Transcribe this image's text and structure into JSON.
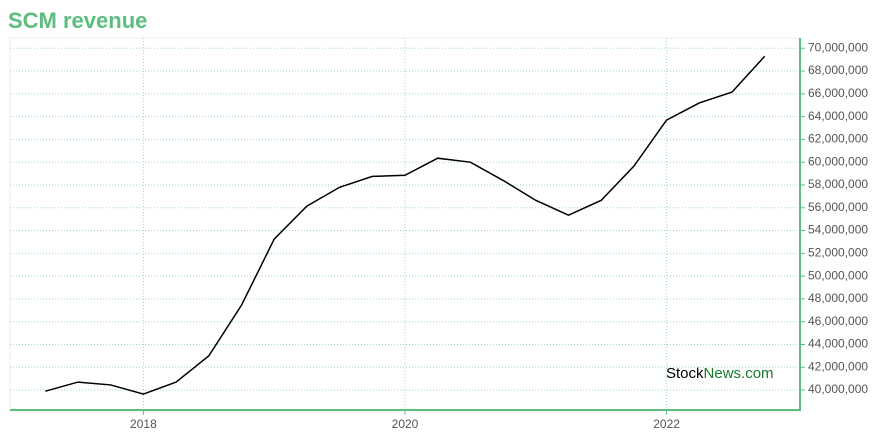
{
  "chart_data": {
    "type": "line",
    "title": "SCM revenue",
    "x": [
      2017.25,
      2017.5,
      2017.75,
      2018,
      2018.25,
      2018.5,
      2018.75,
      2019,
      2019.25,
      2019.5,
      2019.75,
      2020,
      2020.25,
      2020.5,
      2020.75,
      2021,
      2021.25,
      2021.5,
      2021.75,
      2022,
      2022.25,
      2022.5,
      2022.75
    ],
    "series": [
      {
        "name": "SCM revenue",
        "color": "#000000",
        "values": [
          39900000,
          40700000,
          40450000,
          39650000,
          40700000,
          43000000,
          47450000,
          53250000,
          56150000,
          57800000,
          58750000,
          58850000,
          60350000,
          60000000,
          58400000,
          56650000,
          55350000,
          56650000,
          59650000,
          63700000,
          65200000,
          66150000,
          69300000
        ]
      }
    ],
    "xlim": [
      2016.98,
      2023.02
    ],
    "xticks": [
      2018,
      2020,
      2022
    ],
    "ylim": [
      38250000,
      70900000
    ],
    "yticks": [
      {
        "value": 40000000,
        "label": "40,000,000"
      },
      {
        "value": 42000000,
        "label": "42,000,000"
      },
      {
        "value": 44000000,
        "label": "44,000,000"
      },
      {
        "value": 46000000,
        "label": "46,000,000"
      },
      {
        "value": 48000000,
        "label": "48,000,000"
      },
      {
        "value": 50000000,
        "label": "50,000,000"
      },
      {
        "value": 52000000,
        "label": "52,000,000"
      },
      {
        "value": 54000000,
        "label": "54,000,000"
      },
      {
        "value": 56000000,
        "label": "56,000,000"
      },
      {
        "value": 58000000,
        "label": "58,000,000"
      },
      {
        "value": 60000000,
        "label": "60,000,000"
      },
      {
        "value": 62000000,
        "label": "62,000,000"
      },
      {
        "value": 64000000,
        "label": "64,000,000"
      },
      {
        "value": 66000000,
        "label": "66,000,000"
      },
      {
        "value": 68000000,
        "label": "68,000,000"
      },
      {
        "value": 70000000,
        "label": "70,000,000"
      }
    ],
    "grid": true,
    "axis_color": "#5bbd7e",
    "title_color": "#5bbd7e",
    "watermark": {
      "part1": "Stock",
      "part2": "News.com"
    }
  }
}
